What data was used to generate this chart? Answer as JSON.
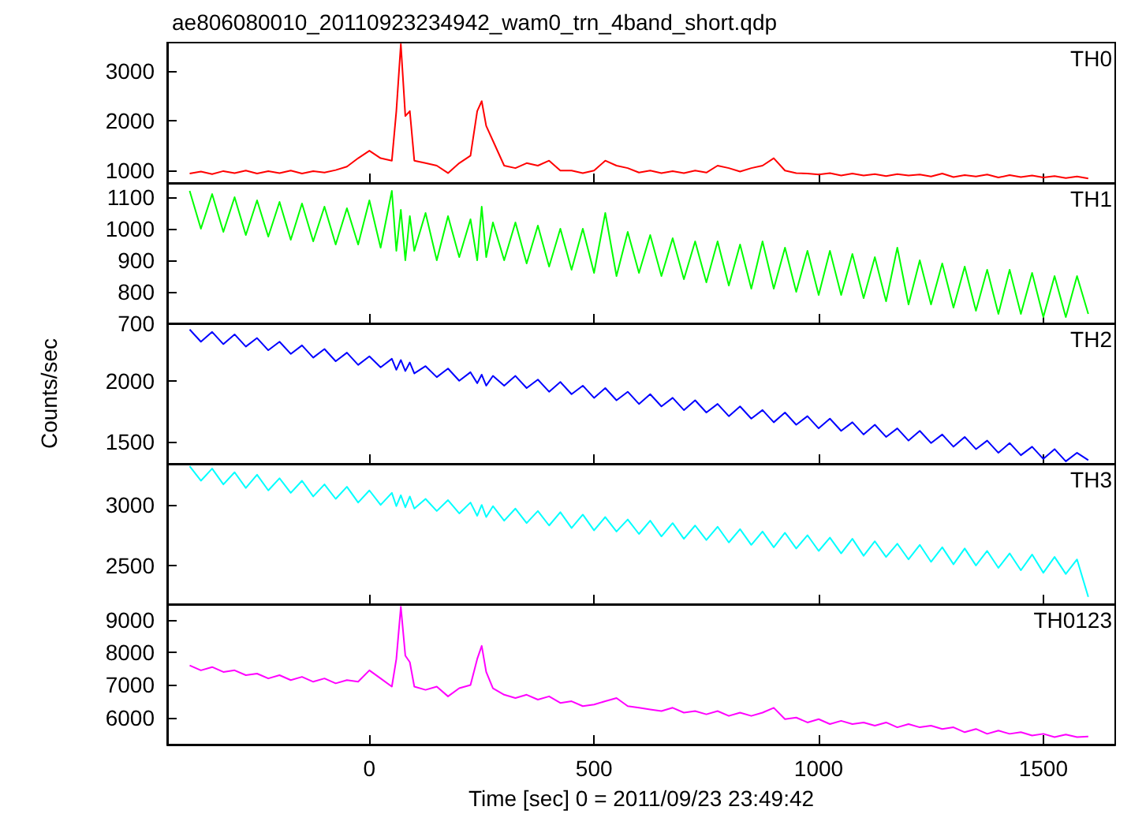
{
  "chart_data": [
    {
      "type": "line",
      "title": "ae806080010_20110923234942_wam0_trn_4band_short.qdp",
      "x": [
        -400,
        -375,
        -350,
        -325,
        -300,
        -275,
        -250,
        -225,
        -200,
        -175,
        -150,
        -125,
        -100,
        -75,
        -50,
        -25,
        0,
        25,
        50,
        60,
        70,
        80,
        90,
        100,
        125,
        150,
        175,
        200,
        225,
        240,
        250,
        260,
        275,
        300,
        325,
        350,
        375,
        400,
        425,
        450,
        475,
        500,
        525,
        550,
        575,
        600,
        625,
        650,
        675,
        700,
        725,
        750,
        775,
        800,
        825,
        850,
        875,
        900,
        925,
        950,
        975,
        1000,
        1025,
        1050,
        1075,
        1100,
        1125,
        1150,
        1175,
        1200,
        1225,
        1250,
        1275,
        1300,
        1325,
        1350,
        1375,
        1400,
        1425,
        1450,
        1475,
        1500,
        1525,
        1550,
        1575,
        1600
      ],
      "series": [
        {
          "name": "TH0",
          "color": "#ff0000",
          "values": [
            940,
            980,
            930,
            990,
            950,
            1000,
            940,
            990,
            950,
            1000,
            940,
            990,
            960,
            1010,
            1080,
            1250,
            1400,
            1250,
            1200,
            2200,
            3550,
            2100,
            2200,
            1200,
            1150,
            1100,
            950,
            1150,
            1300,
            2200,
            2400,
            1900,
            1600,
            1100,
            1050,
            1150,
            1100,
            1200,
            1000,
            1000,
            950,
            1000,
            1200,
            1100,
            1050,
            960,
            1000,
            950,
            990,
            950,
            1000,
            960,
            1100,
            1050,
            980,
            1050,
            1100,
            1250,
            1000,
            950,
            940,
            920,
            950,
            900,
            940,
            900,
            930,
            890,
            930,
            900,
            920,
            880,
            940,
            870,
            910,
            880,
            920,
            860,
            910,
            870,
            900,
            860,
            890,
            850,
            880,
            840
          ]
        }
      ],
      "xlim": [
        -450,
        1660
      ],
      "xticks": [
        0,
        500,
        1000,
        1500
      ],
      "ylim": [
        750,
        3580
      ],
      "yticks": [
        1000,
        2000,
        3000
      ],
      "tick_labels": "y"
    },
    {
      "type": "line",
      "x": [
        -400,
        -375,
        -350,
        -325,
        -300,
        -275,
        -250,
        -225,
        -200,
        -175,
        -150,
        -125,
        -100,
        -75,
        -50,
        -25,
        0,
        25,
        50,
        60,
        70,
        80,
        90,
        100,
        125,
        150,
        175,
        200,
        225,
        240,
        250,
        260,
        275,
        300,
        325,
        350,
        375,
        400,
        425,
        450,
        475,
        500,
        525,
        550,
        575,
        600,
        625,
        650,
        675,
        700,
        725,
        750,
        775,
        800,
        825,
        850,
        875,
        900,
        925,
        950,
        975,
        1000,
        1025,
        1050,
        1075,
        1100,
        1125,
        1150,
        1175,
        1200,
        1225,
        1250,
        1275,
        1300,
        1325,
        1350,
        1375,
        1400,
        1425,
        1450,
        1475,
        1500,
        1525,
        1550,
        1575,
        1600
      ],
      "series": [
        {
          "name": "TH1",
          "color": "#00ff00",
          "values": [
            1120,
            1000,
            1110,
            990,
            1100,
            980,
            1090,
            975,
            1085,
            965,
            1080,
            960,
            1070,
            950,
            1065,
            950,
            1090,
            940,
            1120,
            930,
            1060,
            900,
            1040,
            930,
            1050,
            900,
            1040,
            910,
            1030,
            900,
            1070,
            910,
            1020,
            900,
            1020,
            890,
            1010,
            880,
            1000,
            870,
            1000,
            860,
            1050,
            850,
            990,
            860,
            980,
            850,
            970,
            840,
            960,
            830,
            960,
            820,
            950,
            810,
            960,
            810,
            940,
            800,
            930,
            790,
            930,
            790,
            920,
            780,
            910,
            770,
            940,
            760,
            900,
            760,
            890,
            750,
            880,
            740,
            870,
            730,
            870,
            730,
            860,
            720,
            850,
            720,
            850,
            730
          ]
        }
      ],
      "xlim": [
        -450,
        1660
      ],
      "xticks": [
        0,
        500,
        1000,
        1500
      ],
      "ylim": [
        700,
        1145
      ],
      "yticks": [
        700,
        800,
        900,
        1000,
        1100
      ],
      "tick_labels": "y"
    },
    {
      "type": "line",
      "ylabel": "Counts/sec",
      "x": [
        -400,
        -375,
        -350,
        -325,
        -300,
        -275,
        -250,
        -225,
        -200,
        -175,
        -150,
        -125,
        -100,
        -75,
        -50,
        -25,
        0,
        25,
        50,
        60,
        70,
        80,
        90,
        100,
        125,
        150,
        175,
        200,
        225,
        240,
        250,
        260,
        275,
        300,
        325,
        350,
        375,
        400,
        425,
        450,
        475,
        500,
        525,
        550,
        575,
        600,
        625,
        650,
        675,
        700,
        725,
        750,
        775,
        800,
        825,
        850,
        875,
        900,
        925,
        950,
        975,
        1000,
        1025,
        1050,
        1075,
        1100,
        1125,
        1150,
        1175,
        1200,
        1225,
        1250,
        1275,
        1300,
        1325,
        1350,
        1375,
        1400,
        1425,
        1450,
        1475,
        1500,
        1525,
        1550,
        1575,
        1600
      ],
      "series": [
        {
          "name": "TH2",
          "color": "#0000ff",
          "values": [
            2420,
            2320,
            2400,
            2300,
            2380,
            2280,
            2350,
            2250,
            2320,
            2220,
            2290,
            2190,
            2260,
            2160,
            2230,
            2130,
            2200,
            2110,
            2180,
            2090,
            2170,
            2080,
            2150,
            2060,
            2120,
            2030,
            2100,
            2000,
            2070,
            1980,
            2050,
            1960,
            2040,
            1960,
            2040,
            1940,
            2010,
            1910,
            1990,
            1890,
            1960,
            1860,
            1940,
            1840,
            1910,
            1810,
            1890,
            1790,
            1860,
            1760,
            1840,
            1740,
            1810,
            1710,
            1790,
            1690,
            1760,
            1660,
            1740,
            1640,
            1710,
            1610,
            1690,
            1590,
            1660,
            1560,
            1640,
            1540,
            1610,
            1510,
            1590,
            1490,
            1560,
            1460,
            1540,
            1440,
            1510,
            1410,
            1490,
            1390,
            1460,
            1360,
            1440,
            1340,
            1410,
            1350
          ]
        }
      ],
      "xlim": [
        -450,
        1660
      ],
      "xticks": [
        0,
        500,
        1000,
        1500
      ],
      "ylim": [
        1320,
        2470
      ],
      "yticks": [
        1500,
        2000
      ],
      "tick_labels": "y"
    },
    {
      "type": "line",
      "x": [
        -400,
        -375,
        -350,
        -325,
        -300,
        -275,
        -250,
        -225,
        -200,
        -175,
        -150,
        -125,
        -100,
        -75,
        -50,
        -25,
        0,
        25,
        50,
        60,
        70,
        80,
        90,
        100,
        125,
        150,
        175,
        200,
        225,
        240,
        250,
        260,
        275,
        300,
        325,
        350,
        375,
        400,
        425,
        450,
        475,
        500,
        525,
        550,
        575,
        600,
        625,
        650,
        675,
        700,
        725,
        750,
        775,
        800,
        825,
        850,
        875,
        900,
        925,
        950,
        975,
        1000,
        1025,
        1050,
        1075,
        1100,
        1125,
        1150,
        1175,
        1200,
        1225,
        1250,
        1275,
        1300,
        1325,
        1350,
        1375,
        1400,
        1425,
        1450,
        1475,
        1500,
        1525,
        1550,
        1575,
        1600
      ],
      "series": [
        {
          "name": "TH3",
          "color": "#00ffff",
          "values": [
            3320,
            3200,
            3300,
            3170,
            3270,
            3140,
            3250,
            3120,
            3220,
            3100,
            3200,
            3070,
            3170,
            3050,
            3150,
            3020,
            3120,
            3000,
            3100,
            2990,
            3080,
            2980,
            3070,
            2970,
            3050,
            2950,
            3040,
            2930,
            3020,
            2910,
            3000,
            2900,
            2990,
            2870,
            2970,
            2850,
            2950,
            2830,
            2940,
            2810,
            2920,
            2790,
            2900,
            2780,
            2880,
            2760,
            2870,
            2740,
            2850,
            2720,
            2830,
            2710,
            2820,
            2690,
            2800,
            2670,
            2780,
            2650,
            2770,
            2640,
            2750,
            2620,
            2730,
            2600,
            2720,
            2580,
            2700,
            2570,
            2680,
            2550,
            2670,
            2530,
            2650,
            2510,
            2640,
            2500,
            2620,
            2480,
            2600,
            2460,
            2590,
            2440,
            2570,
            2430,
            2550,
            2240
          ]
        }
      ],
      "xlim": [
        -450,
        1660
      ],
      "xticks": [
        0,
        500,
        1000,
        1500
      ],
      "ylim": [
        2180,
        3340
      ],
      "yticks": [
        2500,
        3000
      ],
      "tick_labels": "y"
    },
    {
      "type": "line",
      "xlabel": "Time [sec] 0 = 2011/09/23 23:49:42",
      "x": [
        -400,
        -375,
        -350,
        -325,
        -300,
        -275,
        -250,
        -225,
        -200,
        -175,
        -150,
        -125,
        -100,
        -75,
        -50,
        -25,
        0,
        25,
        50,
        60,
        70,
        80,
        90,
        100,
        125,
        150,
        175,
        200,
        225,
        240,
        250,
        260,
        275,
        300,
        325,
        350,
        375,
        400,
        425,
        450,
        475,
        500,
        525,
        550,
        575,
        600,
        625,
        650,
        675,
        700,
        725,
        750,
        775,
        800,
        825,
        850,
        875,
        900,
        925,
        950,
        975,
        1000,
        1025,
        1050,
        1075,
        1100,
        1125,
        1150,
        1175,
        1200,
        1225,
        1250,
        1275,
        1300,
        1325,
        1350,
        1375,
        1400,
        1425,
        1450,
        1475,
        1500,
        1525,
        1550,
        1575,
        1600
      ],
      "series": [
        {
          "name": "TH0123",
          "color": "#ff00ff",
          "values": [
            7600,
            7450,
            7550,
            7400,
            7450,
            7300,
            7350,
            7200,
            7300,
            7150,
            7250,
            7100,
            7200,
            7050,
            7150,
            7100,
            7450,
            7200,
            6950,
            7800,
            9400,
            7900,
            7700,
            6950,
            6850,
            6950,
            6650,
            6900,
            7000,
            7800,
            8200,
            7400,
            6900,
            6700,
            6600,
            6700,
            6550,
            6650,
            6450,
            6500,
            6350,
            6400,
            6500,
            6600,
            6350,
            6300,
            6250,
            6200,
            6300,
            6150,
            6200,
            6100,
            6200,
            6050,
            6150,
            6050,
            6150,
            6300,
            5950,
            6000,
            5850,
            5950,
            5800,
            5900,
            5800,
            5850,
            5750,
            5850,
            5700,
            5800,
            5700,
            5750,
            5650,
            5700,
            5550,
            5650,
            5500,
            5600,
            5500,
            5550,
            5450,
            5500,
            5400,
            5480,
            5400,
            5420
          ]
        }
      ],
      "xlim": [
        -450,
        1660
      ],
      "xticks": [
        0,
        500,
        1000,
        1500
      ],
      "ylim": [
        5170,
        9480
      ],
      "yticks": [
        6000,
        7000,
        8000,
        9000
      ]
    }
  ]
}
